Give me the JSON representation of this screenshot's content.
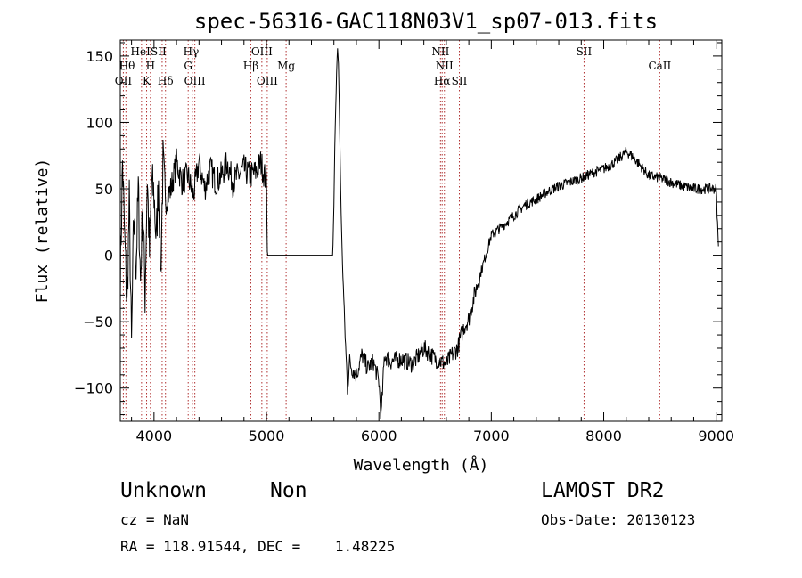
{
  "chart_data": {
    "type": "line",
    "title": "spec-56316-GAC118N03V1_sp07-013.fits",
    "xlabel": "Wavelength (Å)",
    "ylabel": "Flux (relative)",
    "xlim": [
      3700,
      9050
    ],
    "ylim": [
      -125,
      162
    ],
    "x_ticks": [
      4000,
      5000,
      6000,
      7000,
      8000,
      9000
    ],
    "x_tick_labels": [
      "4000",
      "5000",
      "6000",
      "7000",
      "8000",
      "9000"
    ],
    "y_ticks": [
      -100,
      -50,
      0,
      50,
      100,
      150
    ],
    "y_tick_labels": [
      "−100",
      "−50",
      "0",
      "50",
      "100",
      "150"
    ],
    "grid": false,
    "series": [
      {
        "color": "#000000",
        "x": [
          3700,
          3720,
          3740,
          3760,
          3780,
          3800,
          3820,
          3840,
          3860,
          3880,
          3900,
          3920,
          3940,
          3960,
          3980,
          4000,
          4020,
          4040,
          4060,
          4080,
          4100,
          4150,
          4200,
          4250,
          4300,
          4350,
          4400,
          4450,
          4500,
          4550,
          4600,
          4650,
          4700,
          4750,
          4800,
          4850,
          4900,
          4950,
          5000,
          5010,
          5020,
          5100,
          5200,
          5300,
          5400,
          5500,
          5590,
          5600,
          5610,
          5620,
          5630,
          5640,
          5650,
          5660,
          5670,
          5680,
          5700,
          5720,
          5740,
          5760,
          5800,
          5850,
          5900,
          5950,
          6000,
          6020,
          6050,
          6100,
          6200,
          6300,
          6400,
          6500,
          6600,
          6650,
          6700,
          6750,
          6800,
          6850,
          6900,
          6950,
          7000,
          7100,
          7200,
          7300,
          7400,
          7500,
          7600,
          7700,
          7800,
          7900,
          8000,
          8100,
          8200,
          8250,
          8300,
          8400,
          8500,
          8600,
          8700,
          8800,
          8900,
          9000,
          9020
        ],
        "y": [
          -20,
          70,
          10,
          -40,
          40,
          -70,
          30,
          -10,
          50,
          -20,
          40,
          -30,
          60,
          0,
          55,
          45,
          10,
          60,
          -15,
          70,
          40,
          50,
          70,
          55,
          60,
          45,
          70,
          50,
          65,
          55,
          60,
          70,
          55,
          60,
          65,
          60,
          62,
          70,
          55,
          0,
          0,
          0,
          0,
          0,
          0,
          0,
          0,
          40,
          90,
          120,
          158,
          145,
          100,
          50,
          10,
          -15,
          -60,
          -100,
          -80,
          -85,
          -90,
          -75,
          -85,
          -80,
          -95,
          -122,
          -75,
          -80,
          -78,
          -82,
          -70,
          -78,
          -82,
          -75,
          -70,
          -55,
          -48,
          -30,
          -15,
          0,
          15,
          22,
          30,
          38,
          42,
          48,
          52,
          55,
          58,
          62,
          65,
          70,
          78,
          75,
          70,
          60,
          58,
          55,
          52,
          50,
          50,
          50,
          5
        ]
      }
    ],
    "line_markers": [
      {
        "x": 3727,
        "labels": [
          "OII"
        ]
      },
      {
        "x": 3750,
        "labels": [
          "Hθ"
        ]
      },
      {
        "x": 3889,
        "labels": [
          "HeI"
        ]
      },
      {
        "x": 3934,
        "labels": [
          "K"
        ]
      },
      {
        "x": 3968,
        "labels": [
          "H"
        ]
      },
      {
        "x": 4072,
        "labels": [
          "SII"
        ]
      },
      {
        "x": 4102,
        "labels": [
          "Hδ"
        ]
      },
      {
        "x": 4304,
        "labels": [
          "G"
        ]
      },
      {
        "x": 4341,
        "labels": [
          "Hγ"
        ]
      },
      {
        "x": 4363,
        "labels": [
          "OIII"
        ]
      },
      {
        "x": 4861,
        "labels": [
          "Hβ"
        ]
      },
      {
        "x": 4959,
        "labels": [
          "OIII"
        ]
      },
      {
        "x": 5007,
        "labels": [
          "OIII"
        ]
      },
      {
        "x": 5175,
        "labels": [
          "Mg"
        ]
      },
      {
        "x": 6548,
        "labels": [
          "NII"
        ]
      },
      {
        "x": 6563,
        "labels": [
          "Hα"
        ]
      },
      {
        "x": 6583,
        "labels": [
          "NII"
        ]
      },
      {
        "x": 6716,
        "labels": [
          "SII"
        ]
      },
      {
        "x": 7825,
        "labels": [
          "SII"
        ]
      },
      {
        "x": 8498,
        "labels": [
          "CaII"
        ]
      }
    ],
    "annotations": [
      {
        "text": "Hθ",
        "row": 2,
        "x": 3760
      },
      {
        "text": "OII",
        "row": 3,
        "x": 3727
      },
      {
        "text": "HeI",
        "row": 1,
        "x": 3880
      },
      {
        "text": "SII",
        "row": 1,
        "x": 4040
      },
      {
        "text": "H",
        "row": 2,
        "x": 3968
      },
      {
        "text": "K",
        "row": 3,
        "x": 3934
      },
      {
        "text": "Hδ",
        "row": 3,
        "x": 4102
      },
      {
        "text": "Hγ",
        "row": 1,
        "x": 4330
      },
      {
        "text": "G",
        "row": 2,
        "x": 4304
      },
      {
        "text": "OIII",
        "row": 3,
        "x": 4363
      },
      {
        "text": "OIII",
        "row": 1,
        "x": 4959
      },
      {
        "text": "Hβ",
        "row": 2,
        "x": 4861
      },
      {
        "text": "Mg",
        "row": 2,
        "x": 5175
      },
      {
        "text": "OIII",
        "row": 3,
        "x": 5007
      },
      {
        "text": "NII",
        "row": 1,
        "x": 6548
      },
      {
        "text": "NII",
        "row": 2,
        "x": 6583
      },
      {
        "text": "Hα",
        "row": 3,
        "x": 6563
      },
      {
        "text": "SII",
        "row": 3,
        "x": 6716
      },
      {
        "text": "SII",
        "row": 1,
        "x": 7825
      },
      {
        "text": "CaII",
        "row": 2,
        "x": 8498
      }
    ],
    "marker_color": "#b03030"
  },
  "info": {
    "class_label": "Unknown",
    "subclass_label": "Non",
    "survey": "LAMOST DR2",
    "cz": "cz = NaN",
    "obs_date": "Obs-Date: 20130123",
    "coords": "RA = 118.91544, DEC =    1.48225"
  }
}
